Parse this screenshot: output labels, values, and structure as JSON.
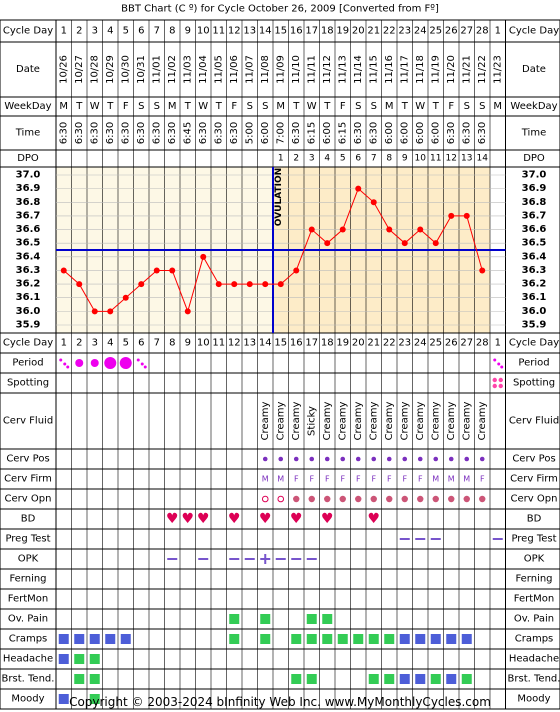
{
  "chart_data": {
    "type": "line",
    "title": "BBT Chart (C º) for Cycle October 26, 2009  [Converted from Fº]",
    "row_labels": {
      "cycle_day": "Cycle Day",
      "date": "Date",
      "weekday": "WeekDay",
      "time": "Time",
      "dpo": "DPO",
      "period": "Period",
      "spotting": "Spotting",
      "cerv_fluid": "Cerv Fluid",
      "cerv_pos": "Cerv Pos",
      "cerv_firm": "Cerv Firm",
      "cerv_opn": "Cerv Opn",
      "bd": "BD",
      "preg_test": "Preg Test",
      "opk": "OPK",
      "ferning": "Ferning",
      "fertmon": "FertMon",
      "ov_pain": "Ov. Pain",
      "cramps": "Cramps",
      "headache": "Headache",
      "brst_tend": "Brst. Tend.",
      "moody": "Moody"
    },
    "cycle_days": [
      "1",
      "2",
      "3",
      "4",
      "5",
      "6",
      "7",
      "8",
      "9",
      "10",
      "11",
      "12",
      "13",
      "14",
      "15",
      "16",
      "17",
      "18",
      "19",
      "20",
      "21",
      "22",
      "23",
      "24",
      "25",
      "26",
      "27",
      "28",
      "1"
    ],
    "dates": [
      "10/26",
      "10/27",
      "10/28",
      "10/29",
      "10/30",
      "10/31",
      "11/01",
      "11/02",
      "11/03",
      "11/04",
      "11/05",
      "11/06",
      "11/07",
      "11/08",
      "11/09",
      "11/10",
      "11/11",
      "11/12",
      "11/13",
      "11/14",
      "11/15",
      "11/16",
      "11/17",
      "11/18",
      "11/19",
      "11/20",
      "11/21",
      "11/22",
      "11/23"
    ],
    "weekdays": [
      "M",
      "T",
      "W",
      "T",
      "F",
      "S",
      "S",
      "M",
      "T",
      "W",
      "T",
      "F",
      "S",
      "S",
      "M",
      "T",
      "W",
      "T",
      "F",
      "S",
      "S",
      "M",
      "T",
      "W",
      "T",
      "F",
      "S",
      "S",
      "M"
    ],
    "times": [
      "6:30",
      "6:30",
      "6:30",
      "6:30",
      "6:30",
      "6:30",
      "6:30",
      "6:30",
      "6:45",
      "6:30",
      "6:30",
      "6:30",
      "5:00",
      "6:00",
      "7:00",
      "6:30",
      "6:15",
      "6:00",
      "6:15",
      "6:30",
      "6:30",
      "6:00",
      "6:00",
      "6:00",
      "6:00",
      "6:30",
      "6:30",
      "6:30",
      ""
    ],
    "dpo": [
      "",
      "",
      "",
      "",
      "",
      "",
      "",
      "",
      "",
      "",
      "",
      "",
      "",
      "",
      "1",
      "2",
      "3",
      "4",
      "5",
      "6",
      "7",
      "8",
      "9",
      "10",
      "11",
      "12",
      "13",
      "14",
      ""
    ],
    "temps": [
      36.3,
      36.2,
      36.0,
      36.0,
      36.1,
      36.2,
      36.3,
      36.3,
      36.0,
      36.4,
      36.2,
      36.2,
      36.2,
      36.2,
      36.2,
      36.3,
      36.6,
      36.5,
      36.6,
      36.9,
      36.8,
      36.6,
      36.5,
      36.6,
      36.5,
      36.7,
      36.7,
      36.3
    ],
    "y_ticks": [
      "37.0",
      "36.9",
      "36.8",
      "36.7",
      "36.6",
      "36.5",
      "36.4",
      "36.3",
      "36.2",
      "36.1",
      "36.0",
      "35.9"
    ],
    "ylim": [
      35.9,
      37.0
    ],
    "coverline": 36.45,
    "ovulation_after_day": 14,
    "ovulation_label": "OVULATION",
    "period": {
      "1": "light",
      "2": "medium",
      "3": "medium",
      "4": "heavy",
      "5": "heavy",
      "6": "light",
      "29": "light"
    },
    "spotting_days": [
      29
    ],
    "cerv_fluid": {
      "14": "Creamy",
      "15": "Creamy",
      "16": "Creamy",
      "17": "Sticky",
      "18": "Creamy",
      "19": "Creamy",
      "20": "Creamy",
      "21": "Creamy",
      "22": "Creamy",
      "23": "Creamy",
      "24": "Creamy",
      "25": "Creamy",
      "26": "Creamy",
      "27": "Creamy",
      "28": "Creamy"
    },
    "cerv_pos_days": [
      14,
      15,
      16,
      17,
      18,
      19,
      20,
      21,
      22,
      23,
      24,
      25,
      26,
      27,
      28
    ],
    "cerv_firm": {
      "14": "M",
      "15": "M",
      "16": "F",
      "17": "F",
      "18": "F",
      "19": "F",
      "20": "F",
      "21": "F",
      "22": "F",
      "23": "F",
      "24": "F",
      "25": "M",
      "26": "M",
      "27": "M",
      "28": "F"
    },
    "cerv_opn_open_days": [
      14,
      15
    ],
    "cerv_opn_dot_days": [
      16,
      17,
      18,
      19,
      20,
      21,
      22,
      23,
      24,
      25,
      26,
      27,
      28
    ],
    "bd_days": [
      8,
      9,
      10,
      12,
      14,
      16,
      18,
      21
    ],
    "preg_test_days": [
      23,
      24,
      25,
      29
    ],
    "opk": {
      "8": "neg",
      "10": "neg",
      "12": "neg",
      "13": "neg",
      "14": "pos",
      "15": "neg",
      "16": "neg",
      "17": "neg"
    },
    "ov_pain_days": [
      12,
      14,
      17,
      18
    ],
    "cramps": {
      "1": "blue",
      "2": "blue",
      "3": "blue",
      "4": "blue",
      "5": "blue",
      "12": "green",
      "14": "green",
      "16": "green",
      "17": "green",
      "18": "green",
      "19": "green",
      "20": "green",
      "21": "green",
      "22": "green",
      "23": "blue",
      "24": "blue",
      "25": "blue",
      "26": "blue",
      "27": "blue"
    },
    "headache": {
      "1": "blue",
      "2": "green",
      "3": "green"
    },
    "brst_tend": {
      "2": "green",
      "3": "green",
      "16": "green",
      "17": "green",
      "21": "green",
      "22": "green",
      "23": "blue",
      "24": "blue",
      "25": "green",
      "26": "blue",
      "27": "green"
    },
    "moody": {
      "1": "blue",
      "3": "green"
    },
    "colors": {
      "luteal_bg": "#fdecc8",
      "follicular_bg": "#fdf8e6",
      "temp_line": "#ff0000",
      "coverline": "#0000cc",
      "period": "#ee00ee",
      "heart": "#dd0055",
      "purple_mark": "#7b2fbe",
      "green_box": "#33cc55",
      "blue_box": "#4d5ed8",
      "spotting": "#ff44aa",
      "preg_line": "#7755cc",
      "grid": "#000000"
    },
    "footer": "Copyright © 2003-2024 bInfinity Web Inc.    www.MyMonthlyCycles.com"
  }
}
